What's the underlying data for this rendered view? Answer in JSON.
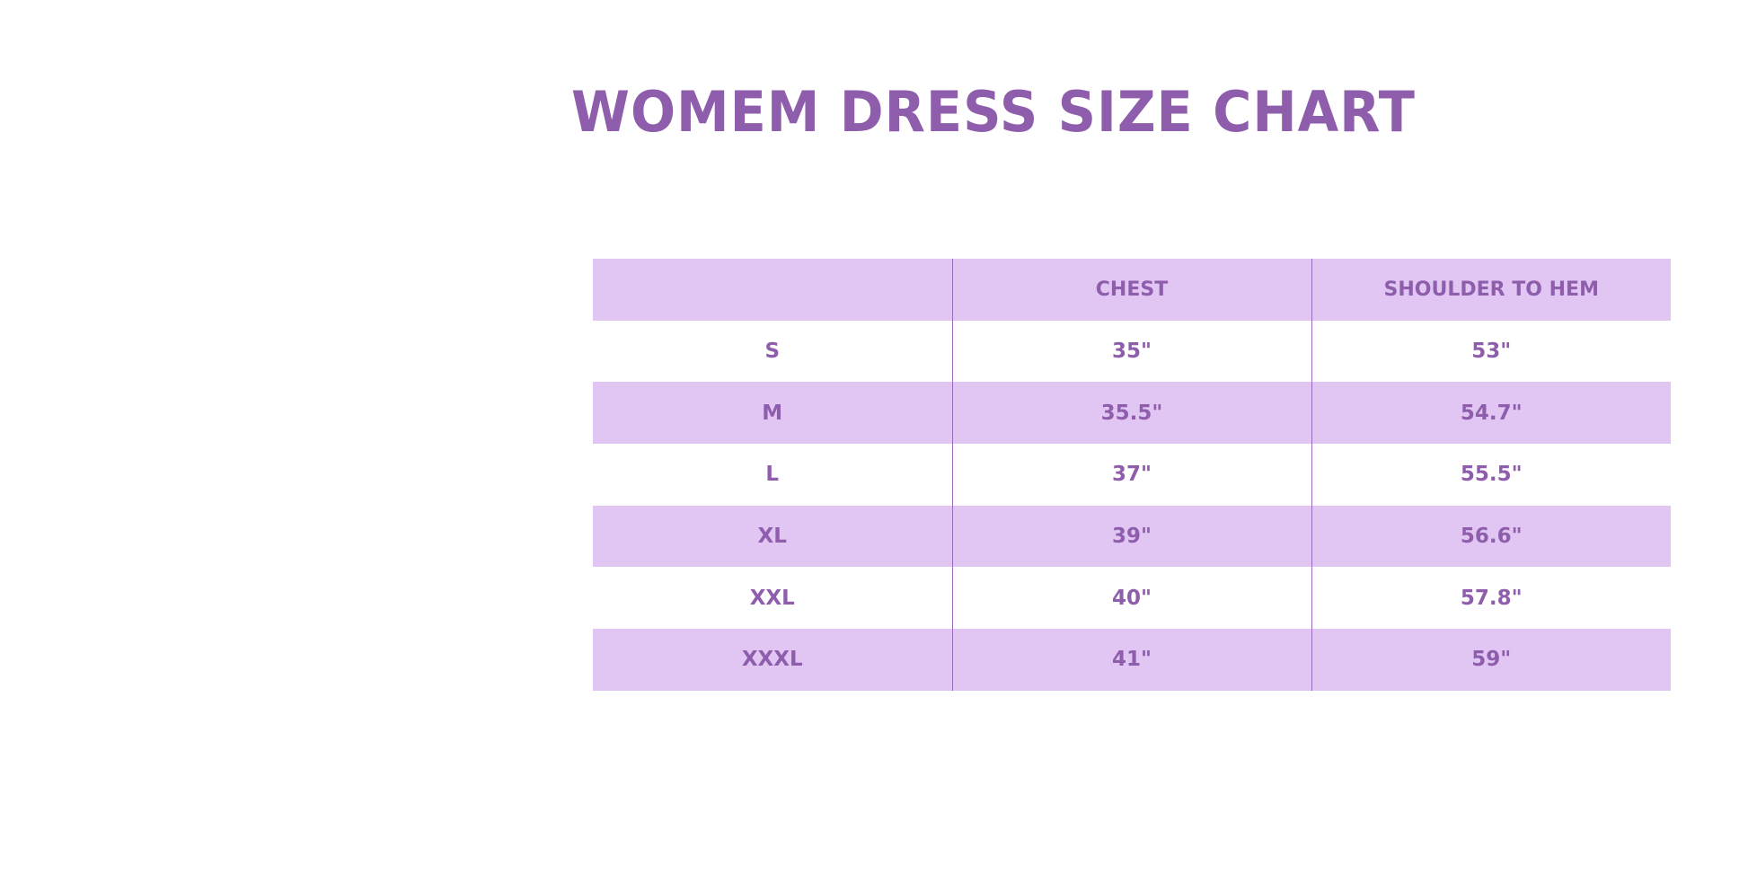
{
  "title": "WOMEM DRESS SIZE CHART",
  "colors": {
    "text": "#8e5dab",
    "row_shade": "#e1c6f4"
  },
  "table": {
    "headers": [
      "",
      "CHEST",
      "SHOULDER TO HEM"
    ],
    "rows": [
      [
        "S",
        "35\"",
        "53\""
      ],
      [
        "M",
        "35.5\"",
        "54.7\""
      ],
      [
        "L",
        "37\"",
        "55.5\""
      ],
      [
        "XL",
        "39\"",
        "56.6\""
      ],
      [
        "XXL",
        "40\"",
        "57.8\""
      ],
      [
        "XXXL",
        "41\"",
        "59\""
      ]
    ]
  }
}
